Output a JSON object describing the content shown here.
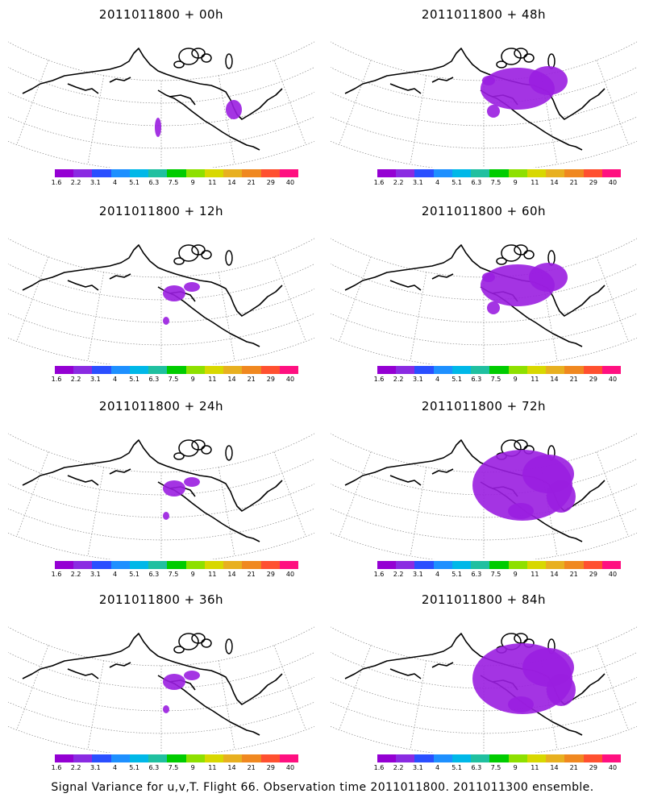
{
  "figure": {
    "caption": "Signal Variance for u,v,T. Flight 66. Observation time 2011011800. 2011011300 ensemble.",
    "colorbar": {
      "colors": [
        "#9400d3",
        "#8a2be2",
        "#2a4fff",
        "#1e90ff",
        "#00b8e8",
        "#20c0a0",
        "#00cc00",
        "#8ee000",
        "#d8d800",
        "#e8b020",
        "#f08820",
        "#ff5030",
        "#ff1080"
      ],
      "ticks": [
        "1.6",
        "2.2",
        "3.1",
        "4",
        "5.1",
        "6.3",
        "7.5",
        "9",
        "11",
        "14",
        "21",
        "29",
        "40"
      ]
    },
    "fill_color": "#9a1ee0",
    "panels": [
      {
        "title": "2011011800 + 00h",
        "column": "left",
        "row": 0,
        "coverage": "minimal"
      },
      {
        "title": "2011011800 + 12h",
        "column": "left",
        "row": 1,
        "coverage": "small"
      },
      {
        "title": "2011011800 + 24h",
        "column": "left",
        "row": 2,
        "coverage": "small"
      },
      {
        "title": "2011011800 + 36h",
        "column": "left",
        "row": 3,
        "coverage": "small"
      },
      {
        "title": "2011011800 + 48h",
        "column": "right",
        "row": 0,
        "coverage": "moderate"
      },
      {
        "title": "2011011800 + 60h",
        "column": "right",
        "row": 1,
        "coverage": "moderate"
      },
      {
        "title": "2011011800 + 72h",
        "column": "right",
        "row": 2,
        "coverage": "large"
      },
      {
        "title": "2011011800 + 84h",
        "column": "right",
        "row": 3,
        "coverage": "large"
      }
    ]
  }
}
